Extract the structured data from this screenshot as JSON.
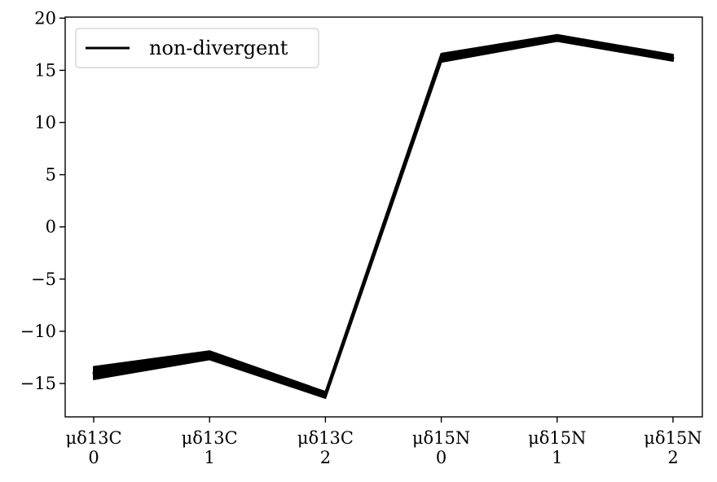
{
  "chart_data": {
    "type": "line",
    "title": "",
    "xlabel": "",
    "ylabel": "",
    "categories": [
      [
        "μδ13C",
        "0"
      ],
      [
        "μδ13C",
        "1"
      ],
      [
        "μδ13C",
        "2"
      ],
      [
        "μδ15N",
        "0"
      ],
      [
        "μδ15N",
        "1"
      ],
      [
        "μδ15N",
        "2"
      ]
    ],
    "ylim": [
      -18.2,
      20.1
    ],
    "yticks": [
      -15,
      -10,
      -5,
      0,
      5,
      10,
      15,
      20
    ],
    "ytick_labels": [
      "−15",
      "−10",
      "−5",
      "0",
      "5",
      "10",
      "15",
      "20"
    ],
    "grid": false,
    "legend": {
      "position": "top-left",
      "entries": [
        "non-divergent"
      ]
    },
    "series": [
      {
        "name": "non-divergent",
        "color": "#000000",
        "center": [
          -14.0,
          -12.3,
          -16.1,
          16.2,
          18.1,
          16.2
        ],
        "low": [
          -14.6,
          -12.7,
          -16.4,
          15.8,
          17.8,
          15.9
        ],
        "high": [
          -13.4,
          -11.9,
          -15.8,
          16.6,
          18.4,
          16.5
        ]
      }
    ]
  }
}
